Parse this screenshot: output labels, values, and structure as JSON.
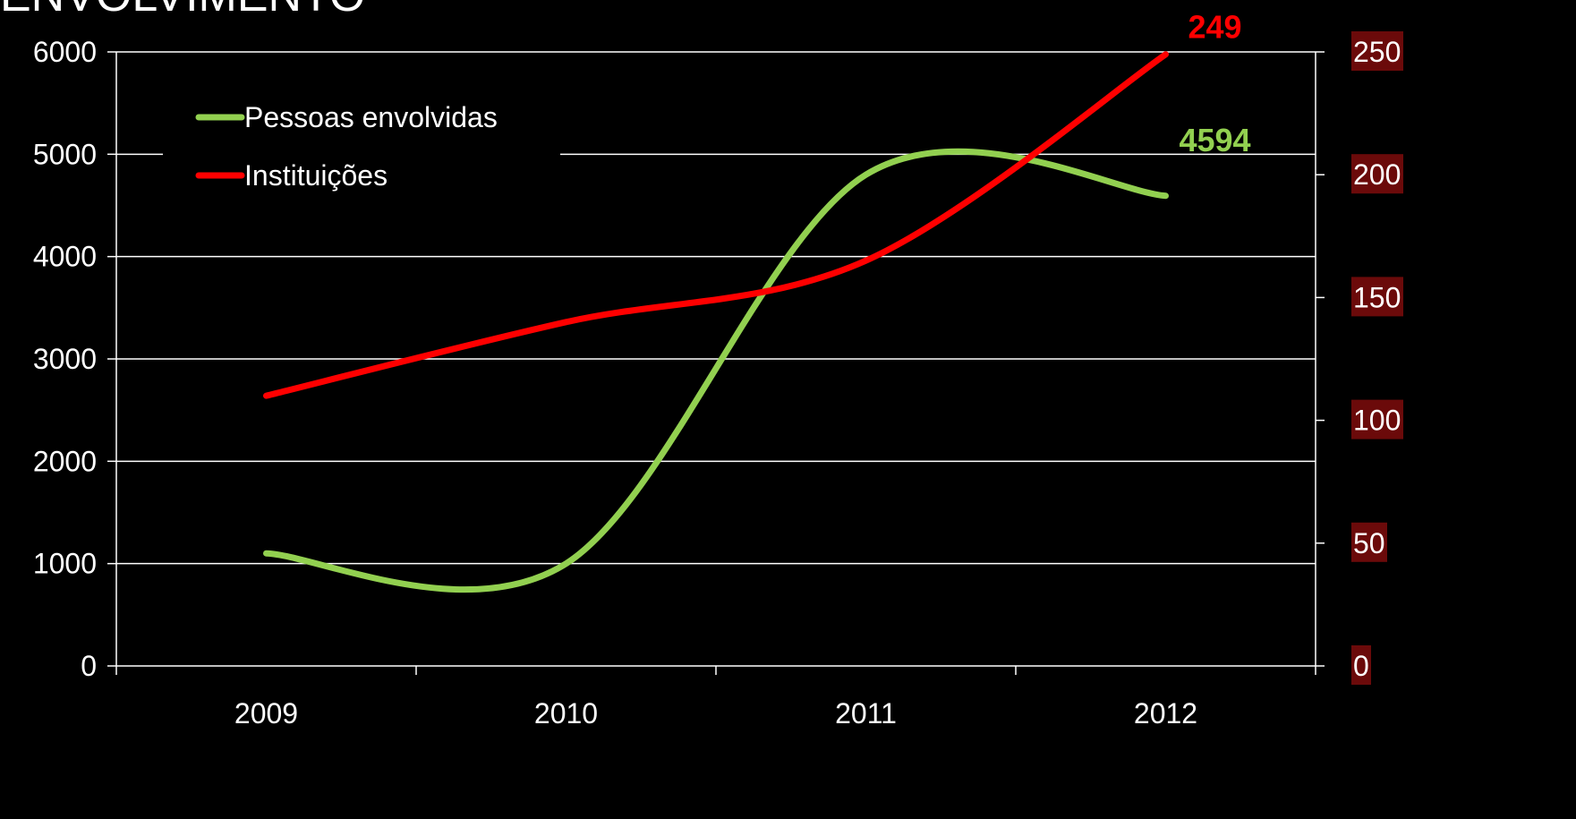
{
  "page": {
    "title": "ENVOLVIMENTO"
  },
  "colors": {
    "background": "#000000",
    "grid": "#ffffff",
    "axis": "#ffffff",
    "series_people": "#92d050",
    "series_institutions": "#ff0000",
    "right_tick_bg": "#6b0a0a"
  },
  "chart_data": {
    "type": "line",
    "title": "ENVOLVIMENTO",
    "categories": [
      "2009",
      "2010",
      "2011",
      "2012"
    ],
    "x": [
      2009,
      2010,
      2011,
      2012
    ],
    "smooth": true,
    "grid": "horizontal",
    "legend_position": "top-left",
    "y_left": {
      "lim": [
        0,
        6000
      ],
      "ticks": [
        "0",
        "1000",
        "2000",
        "3000",
        "4000",
        "5000",
        "6000"
      ]
    },
    "y_right": {
      "lim": [
        0,
        250
      ],
      "ticks": [
        "0",
        "50",
        "100",
        "150",
        "200",
        "250"
      ]
    },
    "series": [
      {
        "name": "Pessoas envolvidas",
        "axis": "left",
        "color": "#92d050",
        "values": [
          1100,
          1000,
          4800,
          4594
        ],
        "end_label": "4594"
      },
      {
        "name": "Instituições",
        "axis": "right",
        "color": "#ff0000",
        "values": [
          110,
          140,
          165,
          249
        ],
        "end_label": "249"
      }
    ]
  }
}
